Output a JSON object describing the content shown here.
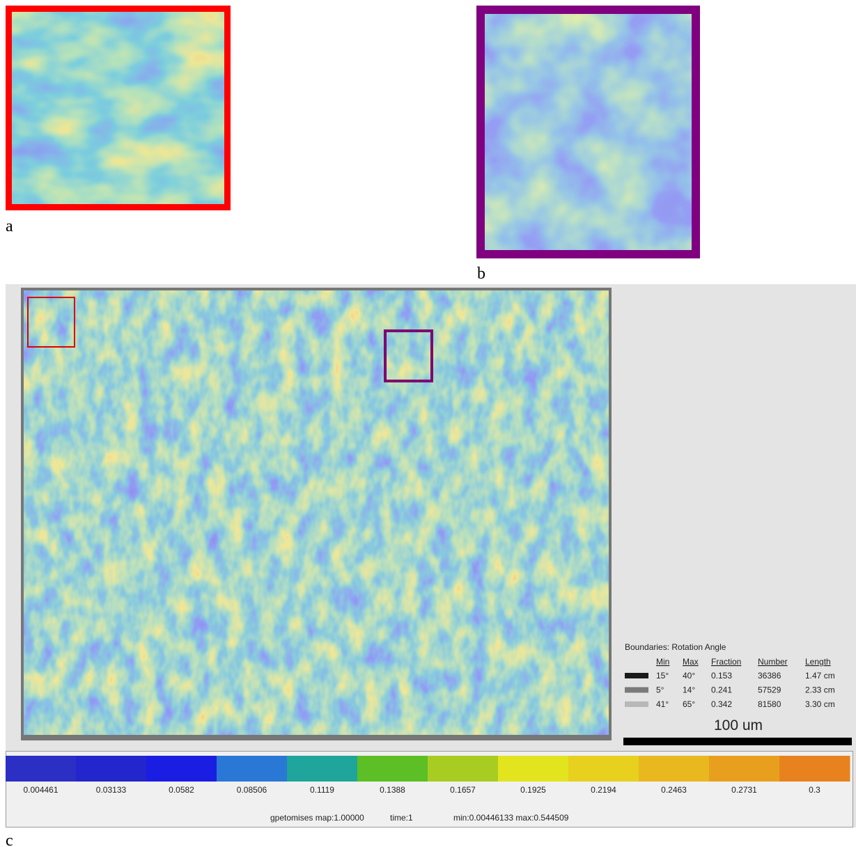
{
  "panels": {
    "a": "a",
    "b": "b",
    "c": "c"
  },
  "legend": {
    "title": "Boundaries: Rotation Angle",
    "headers": [
      "Min",
      "Max",
      "Fraction",
      "Number",
      "Length"
    ],
    "rows": [
      {
        "color": "#1a1a1a",
        "cells": [
          "15°",
          "40°",
          "0.153",
          "36386",
          "1.47 cm"
        ]
      },
      {
        "color": "#7a7a7a",
        "cells": [
          "5°",
          "14°",
          "0.241",
          "57529",
          "2.33 cm"
        ]
      },
      {
        "color": "#b8b8b8",
        "cells": [
          "41°",
          "65°",
          "0.342",
          "81580",
          "3.30 cm"
        ]
      }
    ]
  },
  "scale_bar": "100 um",
  "colorbar": {
    "segments": [
      {
        "color": "#2b2fc4",
        "label": "0.004461"
      },
      {
        "color": "#2226cc",
        "label": "0.03133"
      },
      {
        "color": "#1a1ee2",
        "label": "0.0582"
      },
      {
        "color": "#2a78d6",
        "label": "0.08506"
      },
      {
        "color": "#1fa59c",
        "label": "0.1119"
      },
      {
        "color": "#5cbf25",
        "label": "0.1388"
      },
      {
        "color": "#a8cc22",
        "label": "0.1657"
      },
      {
        "color": "#e2e41e",
        "label": "0.1925"
      },
      {
        "color": "#e8d01e",
        "label": "0.2194"
      },
      {
        "color": "#e8b81e",
        "label": "0.2463"
      },
      {
        "color": "#e89f1e",
        "label": "0.2731"
      },
      {
        "color": "#e8821e",
        "label": "0.3"
      }
    ]
  },
  "footer": [
    "gpetomises map:1.00000",
    "time:1",
    "min:0.00446133 max:0.544509"
  ]
}
